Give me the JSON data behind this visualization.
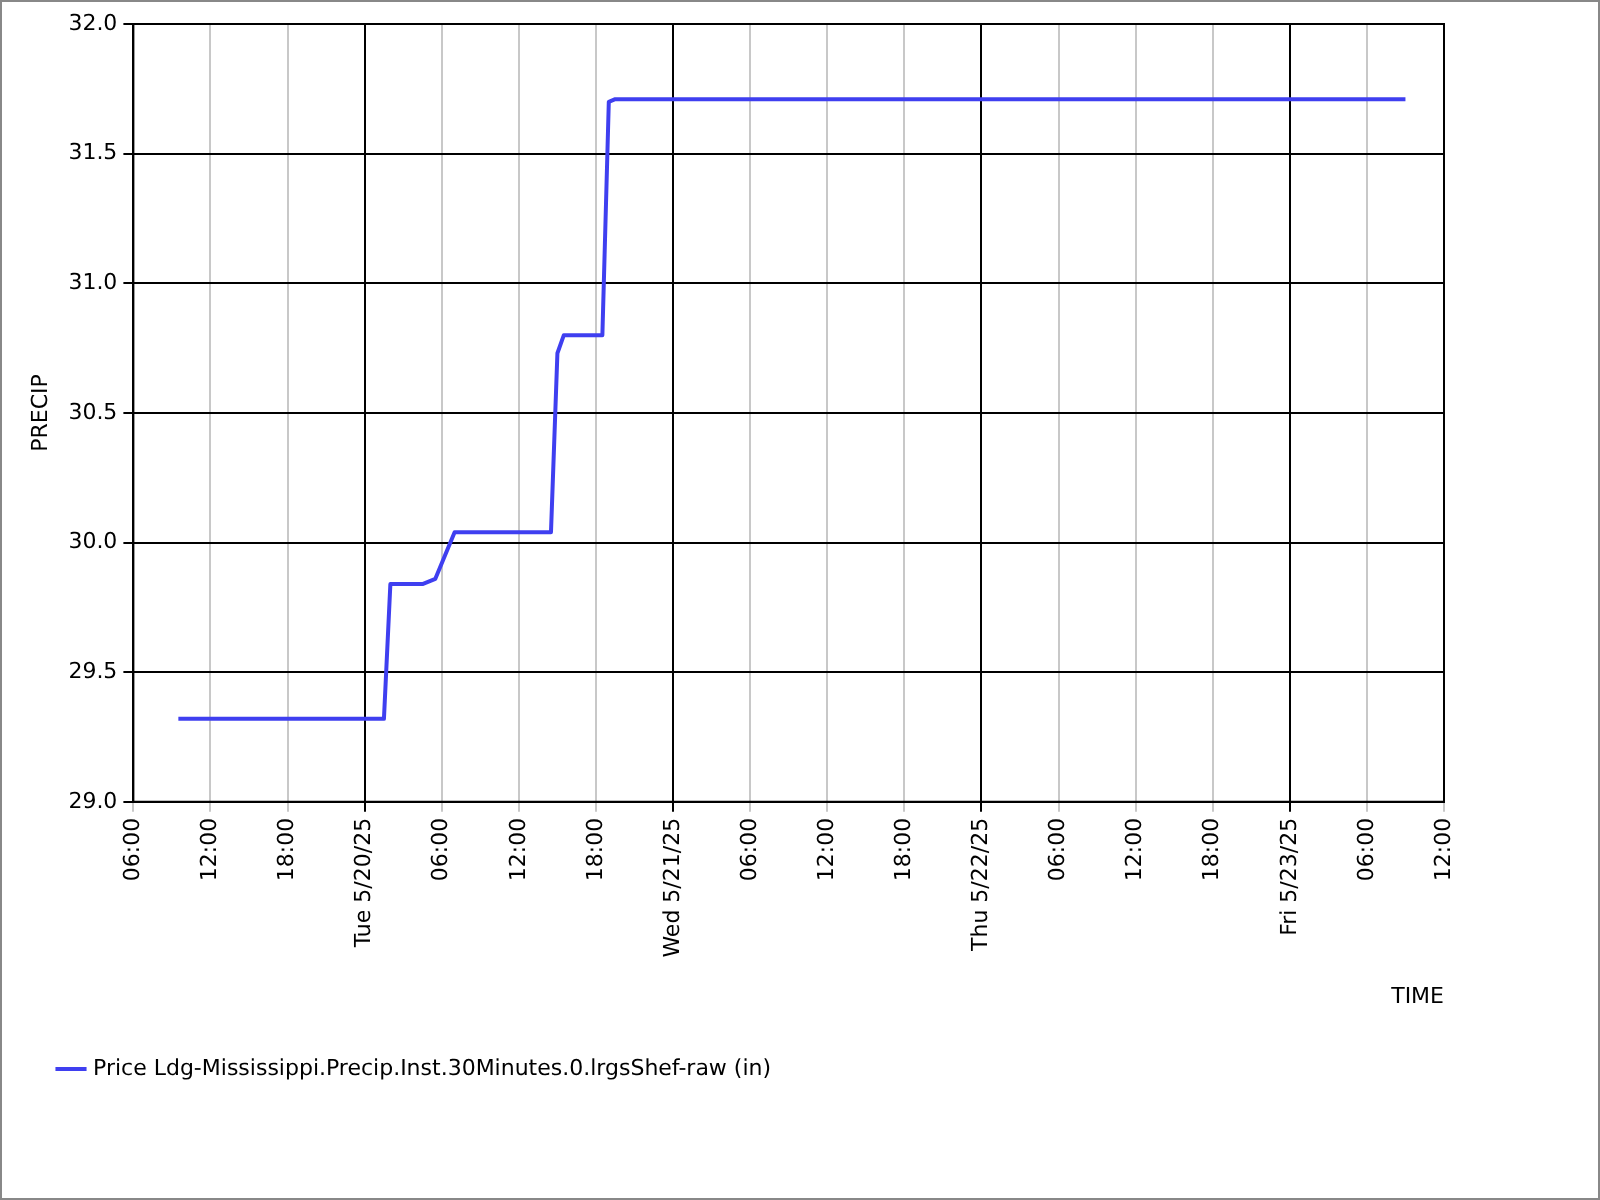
{
  "chart_data": {
    "type": "step",
    "xlabel": "TIME",
    "ylabel": "PRECIP",
    "legend": "bottom left",
    "grid": true,
    "marker": "none",
    "xlim": [
      "--05-19T06:00",
      "--05-23T12:00"
    ],
    "xticks": [
      {
        "value": "--05-19T06:00",
        "label": "06:00"
      },
      {
        "value": "--05-19T12:00",
        "label": "12:00"
      },
      {
        "value": "--05-19T18:00",
        "label": "18:00"
      },
      {
        "value": "--05-20T00:00",
        "label": "Tue 5/20/25"
      },
      {
        "value": "--05-20T06:00",
        "label": "06:00"
      },
      {
        "value": "--05-20T12:00",
        "label": "12:00"
      },
      {
        "value": "--05-20T18:00",
        "label": "18:00"
      },
      {
        "value": "--05-21T00:00",
        "label": "Wed 5/21/25"
      },
      {
        "value": "--05-21T06:00",
        "label": "06:00"
      },
      {
        "value": "--05-21T12:00",
        "label": "12:00"
      },
      {
        "value": "--05-21T18:00",
        "label": "18:00"
      },
      {
        "value": "--05-22T00:00",
        "label": "Thu 5/22/25"
      },
      {
        "value": "--05-22T06:00",
        "label": "06:00"
      },
      {
        "value": "--05-22T12:00",
        "label": "12:00"
      },
      {
        "value": "--05-22T18:00",
        "label": "18:00"
      },
      {
        "value": "--05-23T00:00",
        "label": "Fri 5/23/25"
      },
      {
        "value": "--05-23T06:00",
        "label": "06:00"
      },
      {
        "value": "--05-23T12:00",
        "label": "12:00"
      }
    ],
    "ylim": [
      29,
      32
    ],
    "yticks": [
      {
        "value": 29,
        "label": "29.0"
      },
      {
        "value": 29.5,
        "label": "29.5"
      },
      {
        "value": 30,
        "label": "30.0"
      },
      {
        "value": 30.5,
        "label": "30.5"
      },
      {
        "value": 31,
        "label": "31.0"
      },
      {
        "value": 31.5,
        "label": "31.5"
      },
      {
        "value": 32,
        "label": "32.0"
      }
    ],
    "series": [
      {
        "name": "Price Ldg-Mississippi.Precip.Inst.30Minutes.0.lrgsShef-raw (in)",
        "color": "#3f3ff0",
        "x": [
          "--05-19T09:30",
          "--05-20T01:30",
          "--05-20T02:00",
          "--05-20T04:30",
          "--05-20T05:30",
          "--05-20T07:00",
          "--05-20T14:30",
          "--05-20T15:00",
          "--05-20T15:30",
          "--05-20T18:30",
          "--05-20T19:00",
          "--05-20T19:30",
          "--05-23T09:00"
        ],
        "values": [
          29.32,
          29.32,
          29.84,
          29.84,
          29.86,
          30.04,
          30.04,
          30.73,
          30.8,
          30.8,
          31.7,
          31.71,
          31.71
        ]
      }
    ]
  }
}
